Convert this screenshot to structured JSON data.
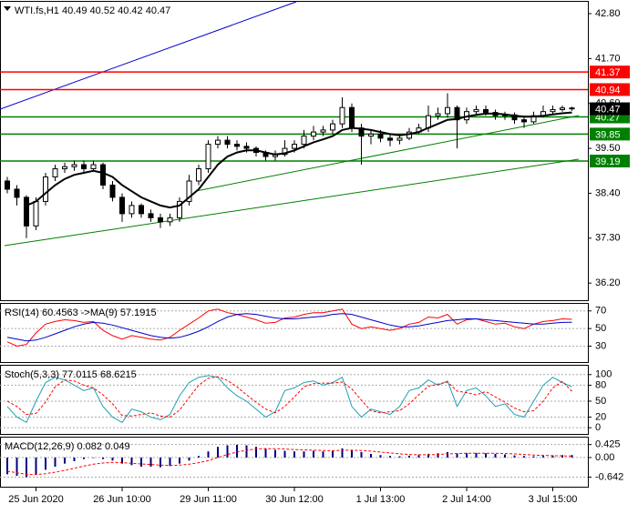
{
  "chart_data": [
    {
      "type": "candlestick",
      "title": "WTI.fs,H1",
      "open": [
        38.7,
        38.5,
        38.3,
        37.6,
        38.2,
        38.8,
        39.0,
        39.05,
        39.1,
        39.0,
        39.1,
        38.6,
        38.3,
        37.9,
        38.1,
        37.9,
        37.8,
        37.7,
        37.8,
        38.2,
        38.7,
        39.0,
        39.6,
        39.7,
        39.6,
        39.55,
        39.5,
        39.4,
        39.3,
        39.35,
        39.5,
        39.6,
        39.8,
        39.9,
        39.95,
        40.1,
        40.5,
        40.0,
        39.8,
        39.85,
        39.75,
        39.7,
        39.75,
        39.9,
        40.0,
        40.3,
        40.35,
        40.5,
        40.2,
        40.4,
        40.45,
        40.38,
        40.3,
        40.32,
        40.2,
        40.15,
        40.3,
        40.4,
        40.45,
        40.49
      ],
      "high": [
        38.8,
        38.6,
        38.35,
        38.3,
        38.9,
        39.1,
        39.15,
        39.2,
        39.2,
        39.2,
        39.15,
        38.7,
        38.4,
        38.2,
        38.15,
        38.0,
        37.9,
        37.9,
        38.3,
        38.85,
        39.1,
        39.7,
        39.8,
        39.8,
        39.7,
        39.65,
        39.55,
        39.45,
        39.45,
        39.7,
        39.7,
        39.95,
        40.05,
        40.05,
        40.2,
        40.75,
        40.6,
        40.1,
        39.95,
        39.95,
        39.85,
        39.85,
        40.0,
        40.1,
        40.55,
        40.5,
        40.85,
        40.55,
        40.5,
        40.55,
        40.55,
        40.45,
        40.4,
        40.38,
        40.3,
        40.4,
        40.55,
        40.55,
        40.55,
        40.52
      ],
      "low": [
        38.4,
        38.1,
        37.3,
        37.5,
        38.1,
        38.7,
        38.9,
        38.95,
        38.9,
        38.95,
        38.5,
        38.2,
        37.7,
        37.8,
        37.8,
        37.7,
        37.55,
        37.6,
        37.7,
        38.1,
        38.6,
        38.9,
        39.5,
        39.5,
        39.45,
        39.4,
        39.3,
        39.2,
        39.2,
        39.3,
        39.4,
        39.5,
        39.7,
        39.8,
        39.85,
        40.0,
        39.9,
        39.1,
        39.6,
        39.65,
        39.55,
        39.6,
        39.7,
        39.85,
        39.9,
        40.2,
        40.25,
        39.5,
        40.1,
        40.3,
        40.3,
        40.2,
        40.2,
        40.1,
        40.0,
        40.1,
        40.25,
        40.35,
        40.4,
        40.42
      ],
      "close": [
        38.5,
        38.3,
        37.6,
        38.2,
        38.8,
        39.0,
        39.05,
        39.1,
        39.0,
        39.1,
        38.6,
        38.3,
        37.9,
        38.1,
        37.9,
        37.8,
        37.7,
        37.8,
        38.2,
        38.7,
        39.0,
        39.6,
        39.7,
        39.6,
        39.55,
        39.5,
        39.4,
        39.3,
        39.35,
        39.5,
        39.6,
        39.8,
        39.9,
        39.95,
        40.1,
        40.5,
        40.0,
        39.8,
        39.85,
        39.75,
        39.7,
        39.75,
        39.9,
        40.0,
        40.3,
        40.35,
        40.5,
        40.2,
        40.4,
        40.45,
        40.38,
        40.3,
        40.32,
        40.2,
        40.15,
        40.3,
        40.4,
        40.45,
        40.49,
        40.47
      ],
      "series": [
        {
          "color": "#000000",
          "values": [
            null,
            null,
            38.1,
            38.2,
            38.4,
            38.6,
            38.75,
            38.85,
            38.9,
            38.95,
            38.9,
            38.8,
            38.6,
            38.45,
            38.3,
            38.2,
            38.1,
            38.05,
            38.1,
            38.3,
            38.5,
            38.8,
            39.1,
            39.3,
            39.4,
            39.45,
            39.45,
            39.4,
            39.35,
            39.38,
            39.45,
            39.55,
            39.65,
            39.72,
            39.8,
            39.95,
            40.0,
            39.98,
            39.95,
            39.9,
            39.85,
            39.82,
            39.85,
            39.9,
            40.0,
            40.1,
            40.2,
            40.22,
            40.28,
            40.32,
            40.35,
            40.35,
            40.33,
            40.3,
            40.28,
            40.28,
            40.3,
            40.33,
            40.36,
            40.38
          ]
        }
      ],
      "levels": [
        {
          "value": 41.37,
          "color": "#ff0000"
        },
        {
          "value": 40.94,
          "color": "#ff0000"
        },
        {
          "value": 40.27,
          "color": "#008000"
        },
        {
          "value": 39.85,
          "color": "#008000"
        },
        {
          "value": 39.19,
          "color": "#008000"
        }
      ],
      "ylim": [
        35.78,
        43.09
      ],
      "yticks": [
        {
          "value": 42.8,
          "label": "42.80"
        },
        {
          "value": 41.7,
          "label": "41.70"
        },
        {
          "value": 40.6,
          "label": "40.60"
        },
        {
          "value": 39.5,
          "label": "39.50"
        },
        {
          "value": 38.4,
          "label": "38.40"
        },
        {
          "value": 37.3,
          "label": "37.30"
        },
        {
          "value": 36.2,
          "label": "36.20"
        }
      ]
    },
    {
      "type": "line",
      "title": "RSI(14) 60.4563  ->MA(9) 57.1915",
      "series": [
        {
          "color": "#ff0000",
          "values": [
            35,
            30,
            32,
            45,
            55,
            58,
            60,
            59,
            57,
            58,
            48,
            42,
            38,
            42,
            40,
            38,
            37,
            40,
            48,
            55,
            62,
            70,
            72,
            68,
            66,
            63,
            60,
            56,
            57,
            62,
            63,
            66,
            68,
            68,
            70,
            72,
            55,
            50,
            52,
            50,
            48,
            50,
            55,
            57,
            63,
            62,
            66,
            55,
            60,
            61,
            58,
            55,
            56,
            52,
            50,
            55,
            58,
            59,
            61,
            60.46
          ]
        },
        {
          "color": "#0000cc",
          "values": [
            40,
            38,
            36,
            37,
            40,
            44,
            48,
            52,
            55,
            57,
            56,
            54,
            51,
            48,
            45,
            42,
            40,
            39,
            40,
            43,
            47,
            52,
            58,
            63,
            66,
            67,
            66,
            64,
            62,
            61,
            61,
            62,
            63,
            64,
            66,
            67,
            66,
            63,
            60,
            57,
            54,
            52,
            52,
            53,
            55,
            57,
            59,
            60,
            61,
            61,
            60,
            59,
            58,
            57,
            56,
            55,
            55,
            56,
            57,
            57.19
          ]
        }
      ],
      "ylim": [
        12,
        78
      ],
      "yticks": [
        70,
        50,
        30
      ]
    },
    {
      "type": "line",
      "title": "Stoch(5,3,3) 77.0115 68.6215",
      "series": [
        {
          "color": "#20a0b0",
          "values": [
            40,
            20,
            10,
            50,
            85,
            95,
            90,
            80,
            70,
            75,
            40,
            20,
            10,
            35,
            30,
            20,
            15,
            25,
            60,
            85,
            95,
            98,
            95,
            75,
            60,
            50,
            35,
            20,
            30,
            70,
            75,
            85,
            88,
            80,
            85,
            95,
            40,
            20,
            35,
            30,
            25,
            40,
            70,
            75,
            90,
            80,
            88,
            40,
            70,
            75,
            60,
            40,
            45,
            25,
            20,
            50,
            80,
            95,
            85,
            77.01
          ]
        },
        {
          "color": "#ff0000",
          "dashed": true,
          "values": [
            50,
            40,
            25,
            27,
            48,
            77,
            90,
            88,
            80,
            75,
            62,
            45,
            23,
            22,
            25,
            28,
            22,
            20,
            33,
            57,
            80,
            93,
            96,
            89,
            77,
            62,
            48,
            35,
            28,
            40,
            58,
            77,
            83,
            84,
            84,
            86,
            73,
            52,
            32,
            28,
            30,
            32,
            45,
            62,
            78,
            82,
            86,
            69,
            66,
            62,
            68,
            58,
            48,
            37,
            30,
            32,
            50,
            75,
            87,
            68.62
          ]
        }
      ],
      "ylim": [
        -11.7,
        116.7
      ],
      "yticks": [
        100,
        80,
        50,
        20,
        0
      ]
    },
    {
      "type": "bar",
      "title": "MACD(12,26,9) 0.082 0.049",
      "color": "#000080",
      "values": [
        -0.55,
        -0.6,
        -0.64,
        -0.55,
        -0.4,
        -0.3,
        -0.2,
        -0.12,
        -0.05,
        0.0,
        -0.05,
        -0.1,
        -0.2,
        -0.25,
        -0.3,
        -0.3,
        -0.32,
        -0.28,
        -0.2,
        -0.1,
        0.05,
        0.2,
        0.35,
        0.4,
        0.42,
        0.4,
        0.35,
        0.3,
        0.25,
        0.22,
        0.2,
        0.2,
        0.22,
        0.2,
        0.22,
        0.3,
        0.25,
        0.18,
        0.12,
        0.08,
        0.05,
        0.04,
        0.06,
        0.08,
        0.12,
        0.14,
        0.18,
        0.14,
        0.15,
        0.15,
        0.14,
        0.12,
        0.1,
        0.07,
        0.05,
        0.04,
        0.05,
        0.07,
        0.08,
        0.082
      ],
      "series": [
        {
          "color": "#ff0000",
          "dashed": true,
          "values": [
            -0.45,
            -0.5,
            -0.55,
            -0.56,
            -0.53,
            -0.48,
            -0.42,
            -0.35,
            -0.28,
            -0.22,
            -0.18,
            -0.16,
            -0.17,
            -0.19,
            -0.21,
            -0.23,
            -0.25,
            -0.26,
            -0.25,
            -0.22,
            -0.17,
            -0.1,
            0.0,
            0.1,
            0.18,
            0.24,
            0.28,
            0.29,
            0.29,
            0.28,
            0.26,
            0.25,
            0.24,
            0.23,
            0.22,
            0.24,
            0.24,
            0.23,
            0.21,
            0.18,
            0.15,
            0.12,
            0.1,
            0.09,
            0.09,
            0.1,
            0.12,
            0.13,
            0.14,
            0.14,
            0.14,
            0.14,
            0.13,
            0.12,
            0.1,
            0.08,
            0.07,
            0.06,
            0.055,
            0.049
          ]
        }
      ],
      "categories": [
        null,
        null,
        null,
        "25 Jun 2020",
        null,
        null,
        null,
        null,
        null,
        null,
        null,
        null,
        "26 Jun 10:00",
        null,
        null,
        null,
        null,
        null,
        null,
        null,
        null,
        "29 Jun 11:00",
        null,
        null,
        null,
        null,
        null,
        null,
        null,
        null,
        "30 Jun 12:00",
        null,
        null,
        null,
        null,
        null,
        null,
        null,
        null,
        "1 Jul 13:00",
        null,
        null,
        null,
        null,
        null,
        null,
        null,
        null,
        "2 Jul 14:00",
        null,
        null,
        null,
        null,
        null,
        null,
        null,
        null,
        "3 Jul 15:00",
        null,
        null
      ],
      "ylim": [
        -0.957,
        0.654
      ],
      "yticks": [
        0.425,
        {
          "value": 0,
          "label": "0.00"
        },
        -0.642
      ]
    }
  ]
}
